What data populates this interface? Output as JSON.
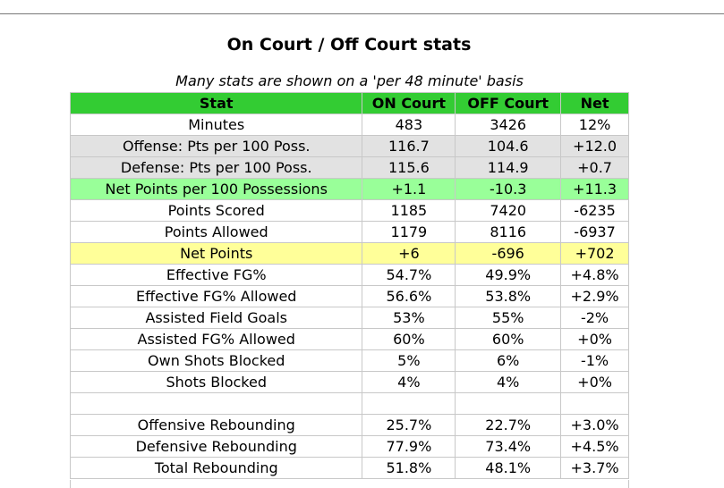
{
  "page": {
    "title": "On Court / Off Court stats",
    "subtitle": "Many stats are shown on a 'per 48 minute' basis"
  },
  "table": {
    "headers": [
      "Stat",
      "ON Court",
      "OFF Court",
      "Net"
    ],
    "rows": [
      {
        "stat": "Minutes",
        "on": "483",
        "off": "3426",
        "net": "12%",
        "style": "plain"
      },
      {
        "stat": "Offense: Pts per 100 Poss.",
        "on": "116.7",
        "off": "104.6",
        "net": "+12.0",
        "style": "gray"
      },
      {
        "stat": "Defense: Pts per 100 Poss.",
        "on": "115.6",
        "off": "114.9",
        "net": "+0.7",
        "style": "gray"
      },
      {
        "stat": "Net Points per 100 Possessions",
        "on": "+1.1",
        "off": "-10.3",
        "net": "+11.3",
        "style": "green"
      },
      {
        "stat": "Points Scored",
        "on": "1185",
        "off": "7420",
        "net": "-6235",
        "style": "plain"
      },
      {
        "stat": "Points Allowed",
        "on": "1179",
        "off": "8116",
        "net": "-6937",
        "style": "plain"
      },
      {
        "stat": "Net Points",
        "on": "+6",
        "off": "-696",
        "net": "+702",
        "style": "yellow"
      },
      {
        "stat": "Effective FG%",
        "on": "54.7%",
        "off": "49.9%",
        "net": "+4.8%",
        "style": "plain"
      },
      {
        "stat": "Effective FG% Allowed",
        "on": "56.6%",
        "off": "53.8%",
        "net": "+2.9%",
        "style": "plain"
      },
      {
        "stat": "Assisted Field Goals",
        "on": "53%",
        "off": "55%",
        "net": "-2%",
        "style": "plain"
      },
      {
        "stat": "Assisted FG% Allowed",
        "on": "60%",
        "off": "60%",
        "net": "+0%",
        "style": "plain"
      },
      {
        "stat": "Own Shots Blocked",
        "on": "5%",
        "off": "6%",
        "net": "-1%",
        "style": "plain"
      },
      {
        "stat": "Shots Blocked",
        "on": "4%",
        "off": "4%",
        "net": "+0%",
        "style": "plain"
      },
      {
        "stat": "",
        "on": "",
        "off": "",
        "net": "",
        "style": "spacer"
      },
      {
        "stat": "Offensive Rebounding",
        "on": "25.7%",
        "off": "22.7%",
        "net": "+3.0%",
        "style": "plain"
      },
      {
        "stat": "Defensive Rebounding",
        "on": "77.9%",
        "off": "73.4%",
        "net": "+4.5%",
        "style": "plain"
      },
      {
        "stat": "Total Rebounding",
        "on": "51.8%",
        "off": "48.1%",
        "net": "+3.7%",
        "style": "plain"
      }
    ]
  }
}
